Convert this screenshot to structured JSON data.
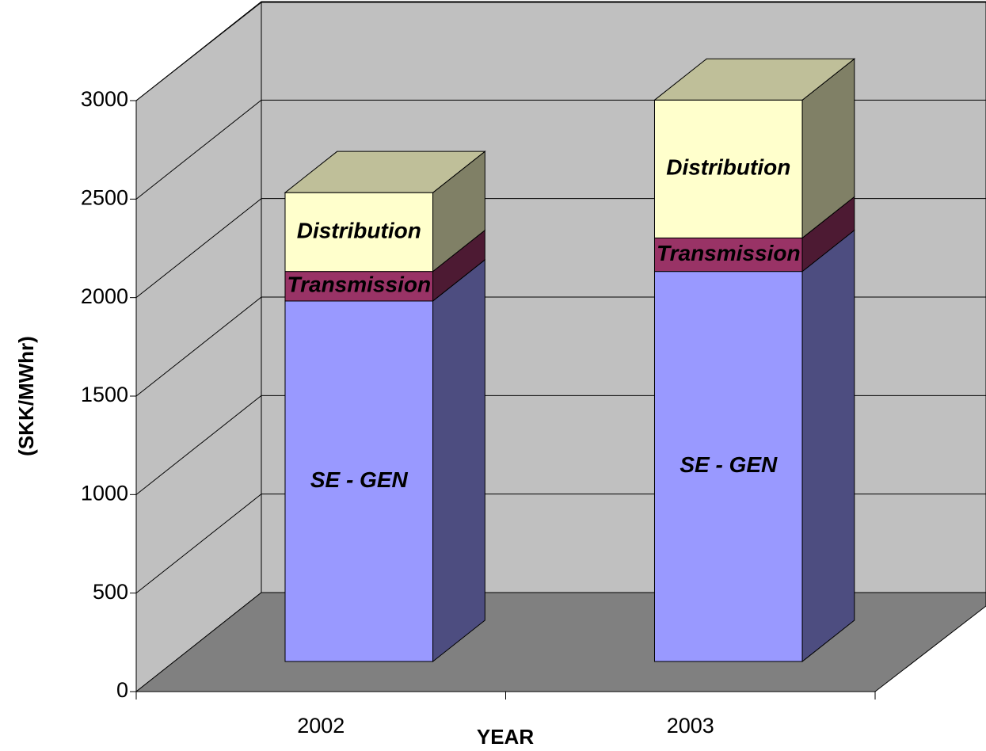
{
  "chart_data": {
    "type": "bar3d_stacked",
    "x_label": "YEAR",
    "y_label": "(SKK/MWhr)",
    "categories": [
      "2002",
      "2003"
    ],
    "series": [
      {
        "name": "SE - GEN",
        "color": "#9999ff",
        "values": [
          1830,
          1980
        ]
      },
      {
        "name": "Transmission",
        "color": "#993366",
        "values": [
          150,
          170
        ]
      },
      {
        "name": "Distribution",
        "color": "#ffffcc",
        "values": [
          400,
          700
        ]
      }
    ],
    "ylim": [
      0,
      3000
    ],
    "yticks": [
      0,
      500,
      1000,
      1500,
      2000,
      2500,
      3000
    ],
    "grid": true
  }
}
